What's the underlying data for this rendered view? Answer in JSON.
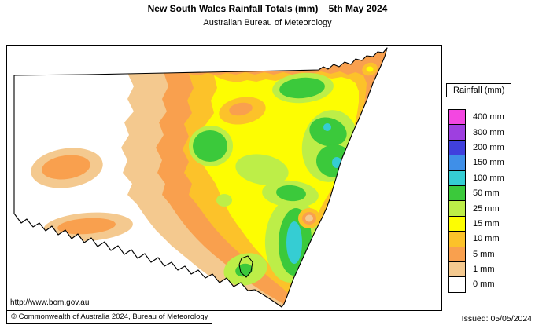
{
  "header": {
    "title": "New South Wales Rainfall Totals (mm)    5th May 2024",
    "subtitle": "Australian Bureau of Meteorology"
  },
  "legend": {
    "title": "Rainfall (mm)",
    "items": [
      {
        "value": "400",
        "label": "400 mm",
        "color": "#f347e1"
      },
      {
        "value": "300",
        "label": "300 mm",
        "color": "#9e3fe0"
      },
      {
        "value": "200",
        "label": "200 mm",
        "color": "#4040dd"
      },
      {
        "value": "150",
        "label": "150 mm",
        "color": "#3f8fe8"
      },
      {
        "value": "100",
        "label": "100 mm",
        "color": "#35cdd3"
      },
      {
        "value": "50",
        "label": "50 mm",
        "color": "#3bc93b"
      },
      {
        "value": "25",
        "label": "25 mm",
        "color": "#bdee48"
      },
      {
        "value": "15",
        "label": "15 mm",
        "color": "#fdfd02"
      },
      {
        "value": "10",
        "label": "10 mm",
        "color": "#fcc22a"
      },
      {
        "value": "5",
        "label": "5 mm",
        "color": "#f9a04e"
      },
      {
        "value": "1",
        "label": "1 mm",
        "color": "#f4c98f"
      },
      {
        "value": "0",
        "label": "0 mm",
        "color": "#ffffff"
      }
    ]
  },
  "footer": {
    "url": "http://www.bom.gov.au",
    "copyright": "© Commonwealth of Australia 2024, Bureau of Meteorology",
    "issued": "Issued: 05/05/2024"
  }
}
